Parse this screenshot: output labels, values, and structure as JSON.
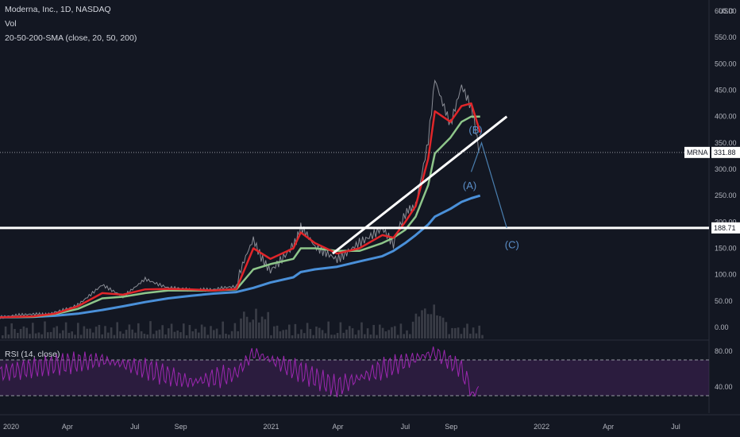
{
  "legend": {
    "title": "Moderna, Inc., 1D, NASDAQ",
    "vol": "Vol",
    "sma": "20-50-200-SMA (close, 20, 50, 200)",
    "rsi": "RSI (14, close)"
  },
  "currency": "USD",
  "price_axis": {
    "labels": [
      "600.00",
      "550.00",
      "500.00",
      "450.00",
      "400.00",
      "350.00",
      "300.00",
      "250.00",
      "200.00",
      "150.00",
      "100.00",
      "50.00",
      "0.00"
    ],
    "values": [
      600,
      550,
      500,
      450,
      400,
      350,
      300,
      250,
      200,
      150,
      100,
      50,
      0
    ]
  },
  "rsi_axis": {
    "labels": [
      "80.00",
      "40.00"
    ],
    "values": [
      80,
      40
    ],
    "bands": [
      70,
      30
    ]
  },
  "time_axis": {
    "labels": [
      "2020",
      "Apr",
      "Jul",
      "Sep",
      "2021",
      "Apr",
      "Jul",
      "Sep",
      "2022",
      "Apr",
      "Jul"
    ],
    "dates": [
      "2020-01-01",
      "2020-04-01",
      "2020-07-01",
      "2020-09-01",
      "2021-01-01",
      "2021-04-01",
      "2021-07-01",
      "2021-09-01",
      "2022-01-01",
      "2022-04-01",
      "2022-07-01"
    ]
  },
  "markers": {
    "current": {
      "label": "331.88",
      "symbol": "MRNA",
      "value": 331.88
    },
    "level": {
      "label": "188.71",
      "value": 188.71
    }
  },
  "annotations": [
    {
      "text": "(B)",
      "date": "2021-10-04",
      "value": 368
    },
    {
      "text": "(A)",
      "date": "2021-09-26",
      "value": 262
    },
    {
      "text": "(C)",
      "date": "2021-11-22",
      "value": 150
    }
  ],
  "colors": {
    "background": "#131722",
    "price_candles": "#8a8d96",
    "sma20": "#e0262a",
    "sma50": "#8ec68a",
    "sma200": "#4a90d9",
    "trendline": "#ffffff",
    "rsi_line": "#9c27b0",
    "rsi_band": "#5a2472",
    "projection": "#4a7fb0",
    "annotation": "#5b8fc9"
  },
  "chart_data": {
    "type": "line",
    "title": "Moderna, Inc., 1D, NASDAQ",
    "ylim": [
      0,
      600
    ],
    "x": [
      "2020-01-01",
      "2020-02-15",
      "2020-03-15",
      "2020-04-15",
      "2020-05-18",
      "2020-06-15",
      "2020-07-15",
      "2020-08-15",
      "2020-09-15",
      "2020-10-15",
      "2020-11-15",
      "2020-12-08",
      "2020-12-31",
      "2021-01-31",
      "2021-02-10",
      "2021-03-01",
      "2021-03-31",
      "2021-04-30",
      "2021-05-31",
      "2021-06-15",
      "2021-07-01",
      "2021-07-15",
      "2021-08-01",
      "2021-08-10",
      "2021-08-31",
      "2021-09-15",
      "2021-09-28",
      "2021-10-10"
    ],
    "series": [
      {
        "name": "Price",
        "values": [
          19,
          22,
          30,
          45,
          80,
          60,
          95,
          75,
          68,
          70,
          75,
          170,
          110,
          165,
          185,
          145,
          130,
          170,
          185,
          160,
          205,
          240,
          360,
          480,
          380,
          450,
          410,
          331.88
        ]
      },
      {
        "name": "SMA 20",
        "values": [
          19,
          21,
          26,
          40,
          65,
          62,
          72,
          73,
          72,
          70,
          73,
          150,
          130,
          150,
          180,
          160,
          140,
          150,
          175,
          170,
          200,
          230,
          320,
          410,
          390,
          420,
          425,
          370
        ]
      },
      {
        "name": "SMA 50",
        "values": [
          19,
          20,
          25,
          35,
          55,
          58,
          65,
          70,
          70,
          70,
          72,
          110,
          120,
          130,
          150,
          150,
          145,
          145,
          160,
          170,
          185,
          210,
          270,
          330,
          360,
          390,
          400,
          400
        ]
      },
      {
        "name": "SMA 200",
        "values": [
          19,
          20,
          22,
          26,
          33,
          40,
          48,
          55,
          60,
          64,
          67,
          75,
          85,
          95,
          105,
          110,
          115,
          125,
          135,
          145,
          160,
          175,
          195,
          210,
          225,
          238,
          245,
          250
        ]
      }
    ],
    "horizontal_level": 188.71,
    "last_price": 331.88,
    "trendline": {
      "x": [
        "2021-03-25",
        "2021-11-15"
      ],
      "y": [
        140,
        400
      ]
    },
    "projection": {
      "x": [
        "2021-09-28",
        "2021-10-12",
        "2021-11-15"
      ],
      "y": [
        295,
        350,
        188.71
      ]
    }
  },
  "rsi_data": {
    "x": [
      "2020-01-01",
      "2020-03-15",
      "2020-05-18",
      "2020-07-15",
      "2020-09-15",
      "2020-11-15",
      "2020-12-08",
      "2021-01-31",
      "2021-03-31",
      "2021-05-31",
      "2021-07-15",
      "2021-08-10",
      "2021-09-15",
      "2021-10-01",
      "2021-10-10"
    ],
    "values": [
      55,
      65,
      70,
      60,
      45,
      55,
      78,
      60,
      40,
      60,
      72,
      78,
      60,
      30,
      40
    ]
  }
}
